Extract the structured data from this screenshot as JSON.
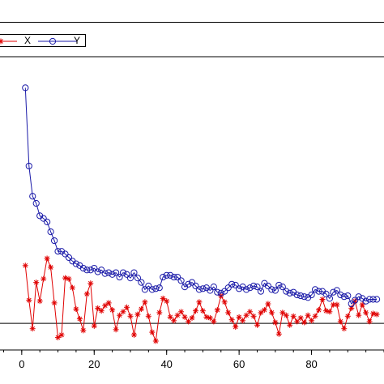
{
  "legend": {
    "x_label": "X",
    "y_label": "Y"
  },
  "colors": {
    "x_series": "#e00000",
    "y_series": "#1a1aa8",
    "axes": "#000000",
    "background": "#ffffff"
  },
  "chart_data": {
    "type": "line",
    "title": "",
    "xlabel": "",
    "ylabel": "",
    "xlim": [
      -6,
      100
    ],
    "ylim": [
      -0.3,
      3.0
    ],
    "xticks": [
      0,
      20,
      40,
      60,
      80
    ],
    "xtick_labels": [
      "0",
      "20",
      "40",
      "60",
      "80"
    ],
    "grid": false,
    "legend_position": "top-left",
    "series": [
      {
        "name": "X",
        "marker": "asterisk",
        "x": [
          1,
          2,
          3,
          4,
          5,
          6,
          7,
          8,
          9,
          10,
          11,
          12,
          13,
          14,
          15,
          16,
          17,
          18,
          19,
          20,
          21,
          22,
          23,
          24,
          25,
          26,
          27,
          28,
          29,
          30,
          31,
          32,
          33,
          34,
          35,
          36,
          37,
          38,
          39,
          40,
          41,
          42,
          43,
          44,
          45,
          46,
          47,
          48,
          49,
          50,
          51,
          52,
          53,
          54,
          55,
          56,
          57,
          58,
          59,
          60,
          61,
          62,
          63,
          64,
          65,
          66,
          67,
          68,
          69,
          70,
          71,
          72,
          73,
          74,
          75,
          76,
          77,
          78,
          79,
          80,
          81,
          82,
          83,
          84,
          85,
          86,
          87,
          88,
          89,
          90,
          91,
          92,
          93,
          94,
          95,
          96,
          97,
          98
        ],
        "y": [
          0.65,
          0.26,
          -0.06,
          0.46,
          0.25,
          0.5,
          0.73,
          0.63,
          0.23,
          -0.16,
          -0.13,
          0.51,
          0.5,
          0.4,
          0.16,
          0.05,
          -0.08,
          0.33,
          0.45,
          -0.03,
          0.17,
          0.14,
          0.2,
          0.23,
          0.15,
          -0.07,
          0.09,
          0.13,
          0.18,
          0.08,
          -0.13,
          0.1,
          0.16,
          0.24,
          0.08,
          -0.1,
          -0.2,
          0.12,
          0.28,
          0.25,
          0.07,
          0.03,
          0.09,
          0.13,
          0.07,
          0.02,
          0.06,
          0.14,
          0.24,
          0.14,
          0.07,
          0.06,
          0.02,
          0.15,
          0.31,
          0.24,
          0.12,
          0.04,
          -0.04,
          0.07,
          0.03,
          0.09,
          0.13,
          0.08,
          -0.02,
          0.12,
          0.15,
          0.22,
          0.12,
          0.01,
          -0.12,
          0.12,
          0.09,
          -0.02,
          0.08,
          0.02,
          0.06,
          0.01,
          0.09,
          0.03,
          0.08,
          0.15,
          0.27,
          0.14,
          0.13,
          0.21,
          0.21,
          0.02,
          -0.06,
          0.08,
          0.17,
          0.25,
          0.09,
          0.21,
          0.12,
          0.02,
          0.11,
          0.1
        ]
      },
      {
        "name": "Y",
        "marker": "circle",
        "x": [
          1,
          2,
          3,
          4,
          5,
          6,
          7,
          8,
          9,
          10,
          11,
          12,
          13,
          14,
          15,
          16,
          17,
          18,
          19,
          20,
          21,
          22,
          23,
          24,
          25,
          26,
          27,
          28,
          29,
          30,
          31,
          32,
          33,
          34,
          35,
          36,
          37,
          38,
          39,
          40,
          41,
          42,
          43,
          44,
          45,
          46,
          47,
          48,
          49,
          50,
          51,
          52,
          53,
          54,
          55,
          56,
          57,
          58,
          59,
          60,
          61,
          62,
          63,
          64,
          65,
          66,
          67,
          68,
          69,
          70,
          71,
          72,
          73,
          74,
          75,
          76,
          77,
          78,
          79,
          80,
          81,
          82,
          83,
          84,
          85,
          86,
          87,
          88,
          89,
          90,
          91,
          92,
          93,
          94,
          95,
          96,
          97,
          98
        ],
        "y": [
          2.65,
          1.77,
          1.43,
          1.35,
          1.21,
          1.18,
          1.14,
          1.03,
          0.93,
          0.81,
          0.81,
          0.78,
          0.74,
          0.7,
          0.67,
          0.65,
          0.62,
          0.6,
          0.6,
          0.62,
          0.58,
          0.6,
          0.56,
          0.57,
          0.55,
          0.57,
          0.52,
          0.57,
          0.55,
          0.51,
          0.57,
          0.51,
          0.46,
          0.38,
          0.42,
          0.38,
          0.39,
          0.4,
          0.52,
          0.54,
          0.54,
          0.52,
          0.52,
          0.48,
          0.41,
          0.44,
          0.46,
          0.42,
          0.38,
          0.39,
          0.4,
          0.37,
          0.41,
          0.35,
          0.34,
          0.36,
          0.4,
          0.44,
          0.43,
          0.39,
          0.41,
          0.38,
          0.4,
          0.42,
          0.41,
          0.36,
          0.45,
          0.42,
          0.38,
          0.37,
          0.43,
          0.41,
          0.36,
          0.34,
          0.35,
          0.32,
          0.31,
          0.3,
          0.29,
          0.32,
          0.38,
          0.36,
          0.36,
          0.33,
          0.28,
          0.35,
          0.37,
          0.32,
          0.3,
          0.31,
          0.22,
          0.26,
          0.3,
          0.28,
          0.25,
          0.27,
          0.27,
          0.27
        ]
      }
    ]
  }
}
